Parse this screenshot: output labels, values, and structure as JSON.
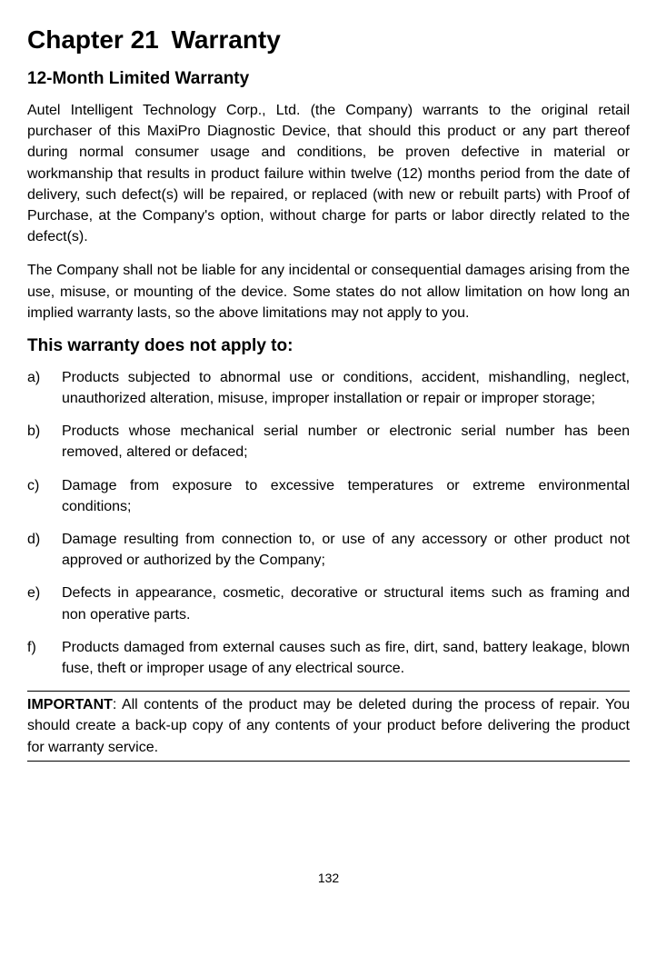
{
  "chapter": {
    "number": "Chapter 21",
    "name": "Warranty"
  },
  "section_heading": "12-Month Limited Warranty",
  "paragraph1": "Autel Intelligent Technology Corp., Ltd. (the Company) warrants to the original retail purchaser of this MaxiPro Diagnostic Device, that should this product or any part thereof during normal consumer usage and conditions, be proven defective in material or workmanship that results in product failure within twelve (12) months period from the date of delivery, such defect(s) will be repaired, or replaced (with new or rebuilt parts) with Proof of Purchase, at the Company's option, without charge for parts or labor directly related to the defect(s).",
  "paragraph2": "The Company shall not be liable for any incidental or consequential damages arising from the use, misuse, or mounting of the device. Some states do not allow limitation on how long an implied warranty lasts, so the above limitations may not apply to you.",
  "subsection_heading": "This warranty does not apply to:",
  "exclusions": [
    {
      "marker": "a)",
      "text": "Products subjected to abnormal use or conditions, accident, mishandling, neglect, unauthorized alteration, misuse, improper installation or repair or improper storage;"
    },
    {
      "marker": "b)",
      "text": "Products whose mechanical serial number or electronic serial number has been removed, altered or defaced;"
    },
    {
      "marker": "c)",
      "text": "Damage from exposure to excessive temperatures or extreme environmental conditions;"
    },
    {
      "marker": "d)",
      "text": "Damage resulting from connection to, or use of any accessory or other product not approved or authorized by the Company;"
    },
    {
      "marker": "e)",
      "text": "Defects in appearance, cosmetic, decorative or structural items such as framing and non operative parts."
    },
    {
      "marker": "f)",
      "text": "Products damaged from external causes such as fire, dirt, sand, battery leakage, blown fuse, theft or improper usage of any electrical source."
    }
  ],
  "important": {
    "label": "IMPORTANT",
    "text": ": All contents of the product may be deleted during the process of repair. You should create a back-up copy of any contents of your product before delivering the product for warranty service."
  },
  "page_number": "132",
  "colors": {
    "text": "#000000",
    "background": "#ffffff",
    "border": "#000000"
  },
  "typography": {
    "chapter_title_fontsize": 28,
    "section_heading_fontsize": 19,
    "body_fontsize": 16,
    "page_number_fontsize": 14,
    "font_family": "Arial"
  }
}
